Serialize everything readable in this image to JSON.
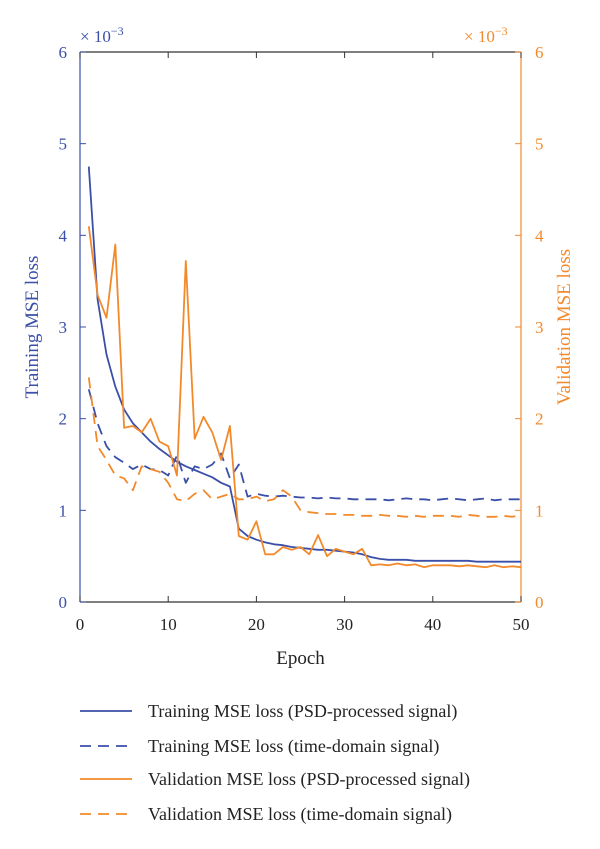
{
  "chart_data": {
    "type": "line",
    "xlabel": "Epoch",
    "ylabel_left": "Training MSE loss",
    "ylabel_right": "Validation MSE loss",
    "scale_left": "× 10",
    "scale_right": "× 10",
    "scale_exponent": "−3",
    "xlim": [
      0,
      50
    ],
    "ylim_left": [
      0,
      6
    ],
    "ylim_right": [
      0,
      6
    ],
    "x_ticks": [
      "0",
      "10",
      "20",
      "30",
      "40",
      "50"
    ],
    "y_ticks": [
      "0",
      "1",
      "2",
      "3",
      "4",
      "5",
      "6"
    ],
    "colors": {
      "training": "#3b4fa8",
      "validation": "#f28a2c"
    },
    "series": [
      {
        "name": "Training MSE loss (PSD-processed signal)",
        "axis": "left",
        "dashed": false,
        "x": [
          1,
          2,
          3,
          4,
          5,
          6,
          7,
          8,
          9,
          10,
          11,
          12,
          13,
          14,
          15,
          16,
          17,
          18,
          19,
          20,
          21,
          22,
          23,
          24,
          25,
          26,
          27,
          28,
          29,
          30,
          31,
          32,
          33,
          34,
          35,
          36,
          37,
          38,
          39,
          40,
          41,
          42,
          43,
          44,
          45,
          46,
          47,
          48,
          49,
          50
        ],
        "values": [
          4.75,
          3.3,
          2.7,
          2.35,
          2.1,
          1.95,
          1.85,
          1.75,
          1.67,
          1.6,
          1.53,
          1.48,
          1.44,
          1.4,
          1.36,
          1.3,
          1.26,
          0.8,
          0.72,
          0.68,
          0.65,
          0.63,
          0.62,
          0.6,
          0.59,
          0.58,
          0.57,
          0.57,
          0.56,
          0.55,
          0.54,
          0.52,
          0.49,
          0.47,
          0.46,
          0.46,
          0.46,
          0.45,
          0.45,
          0.45,
          0.45,
          0.45,
          0.45,
          0.45,
          0.44,
          0.44,
          0.44,
          0.44,
          0.44,
          0.44
        ]
      },
      {
        "name": "Training MSE loss (time-domain signal)",
        "axis": "left",
        "dashed": true,
        "x": [
          1,
          2,
          3,
          4,
          5,
          6,
          7,
          8,
          9,
          10,
          11,
          12,
          13,
          14,
          15,
          16,
          17,
          18,
          19,
          20,
          21,
          22,
          23,
          24,
          25,
          26,
          27,
          28,
          29,
          30,
          31,
          32,
          33,
          34,
          35,
          36,
          37,
          38,
          39,
          40,
          41,
          42,
          43,
          44,
          45,
          46,
          47,
          48,
          49,
          50
        ],
        "values": [
          2.32,
          1.95,
          1.7,
          1.58,
          1.52,
          1.45,
          1.5,
          1.45,
          1.44,
          1.38,
          1.6,
          1.3,
          1.48,
          1.45,
          1.5,
          1.62,
          1.35,
          1.5,
          1.15,
          1.18,
          1.16,
          1.15,
          1.16,
          1.15,
          1.14,
          1.14,
          1.13,
          1.14,
          1.13,
          1.13,
          1.12,
          1.12,
          1.12,
          1.12,
          1.11,
          1.12,
          1.13,
          1.12,
          1.12,
          1.11,
          1.12,
          1.13,
          1.12,
          1.11,
          1.12,
          1.13,
          1.11,
          1.12,
          1.12,
          1.12
        ]
      },
      {
        "name": "Validation MSE loss (PSD-processed signal)",
        "axis": "right",
        "dashed": false,
        "x": [
          1,
          2,
          3,
          4,
          5,
          6,
          7,
          8,
          9,
          10,
          11,
          12,
          13,
          14,
          15,
          16,
          17,
          18,
          19,
          20,
          21,
          22,
          23,
          24,
          25,
          26,
          27,
          28,
          29,
          30,
          31,
          32,
          33,
          34,
          35,
          36,
          37,
          38,
          39,
          40,
          41,
          42,
          43,
          44,
          45,
          46,
          47,
          48,
          49,
          50
        ],
        "values": [
          4.1,
          3.35,
          3.1,
          3.9,
          1.9,
          1.92,
          1.85,
          2.0,
          1.75,
          1.7,
          1.38,
          3.72,
          1.78,
          2.02,
          1.85,
          1.55,
          1.92,
          0.72,
          0.68,
          0.88,
          0.52,
          0.52,
          0.6,
          0.57,
          0.6,
          0.52,
          0.73,
          0.5,
          0.58,
          0.55,
          0.52,
          0.58,
          0.4,
          0.41,
          0.4,
          0.42,
          0.4,
          0.41,
          0.38,
          0.4,
          0.4,
          0.4,
          0.39,
          0.4,
          0.39,
          0.38,
          0.4,
          0.38,
          0.39,
          0.38
        ]
      },
      {
        "name": "Validation MSE loss (time-domain signal)",
        "axis": "right",
        "dashed": true,
        "x": [
          1,
          2,
          3,
          4,
          5,
          6,
          7,
          8,
          9,
          10,
          11,
          12,
          13,
          14,
          15,
          16,
          17,
          18,
          19,
          20,
          21,
          22,
          23,
          24,
          25,
          26,
          27,
          28,
          29,
          30,
          31,
          32,
          33,
          34,
          35,
          36,
          37,
          38,
          39,
          40,
          41,
          42,
          43,
          44,
          45,
          46,
          47,
          48,
          49,
          50
        ],
        "values": [
          2.45,
          1.7,
          1.55,
          1.38,
          1.35,
          1.22,
          1.48,
          1.45,
          1.42,
          1.3,
          1.12,
          1.1,
          1.18,
          1.22,
          1.12,
          1.15,
          1.18,
          1.12,
          1.12,
          1.15,
          1.1,
          1.12,
          1.22,
          1.15,
          1.0,
          0.98,
          0.97,
          0.96,
          0.96,
          0.95,
          0.95,
          0.94,
          0.94,
          0.95,
          0.94,
          0.94,
          0.93,
          0.94,
          0.93,
          0.94,
          0.94,
          0.94,
          0.93,
          0.95,
          0.94,
          0.93,
          0.93,
          0.94,
          0.93,
          0.95
        ]
      }
    ],
    "legend_position": "bottom"
  }
}
